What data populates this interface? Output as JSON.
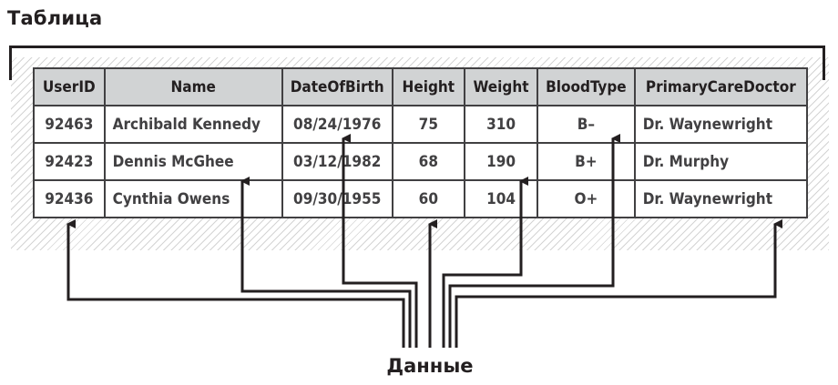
{
  "title": "Таблица",
  "data_label": "Данные",
  "table": {
    "columns": [
      "UserID",
      "Name",
      "DateOfBirth",
      "Height",
      "Weight",
      "BloodType",
      "PrimaryCareDoctor"
    ],
    "rows": [
      [
        "92463",
        "Archibald Kennedy",
        "08/24/1976",
        "75",
        "310",
        "B–",
        "Dr. Waynewright"
      ],
      [
        "92423",
        "Dennis McGhee",
        "03/12/1982",
        "68",
        "190",
        "B+",
        "Dr. Murphy"
      ],
      [
        "92436",
        "Cynthia Owens",
        "09/30/1955",
        "60",
        "104",
        "O+",
        "Dr. Waynewright"
      ]
    ]
  }
}
